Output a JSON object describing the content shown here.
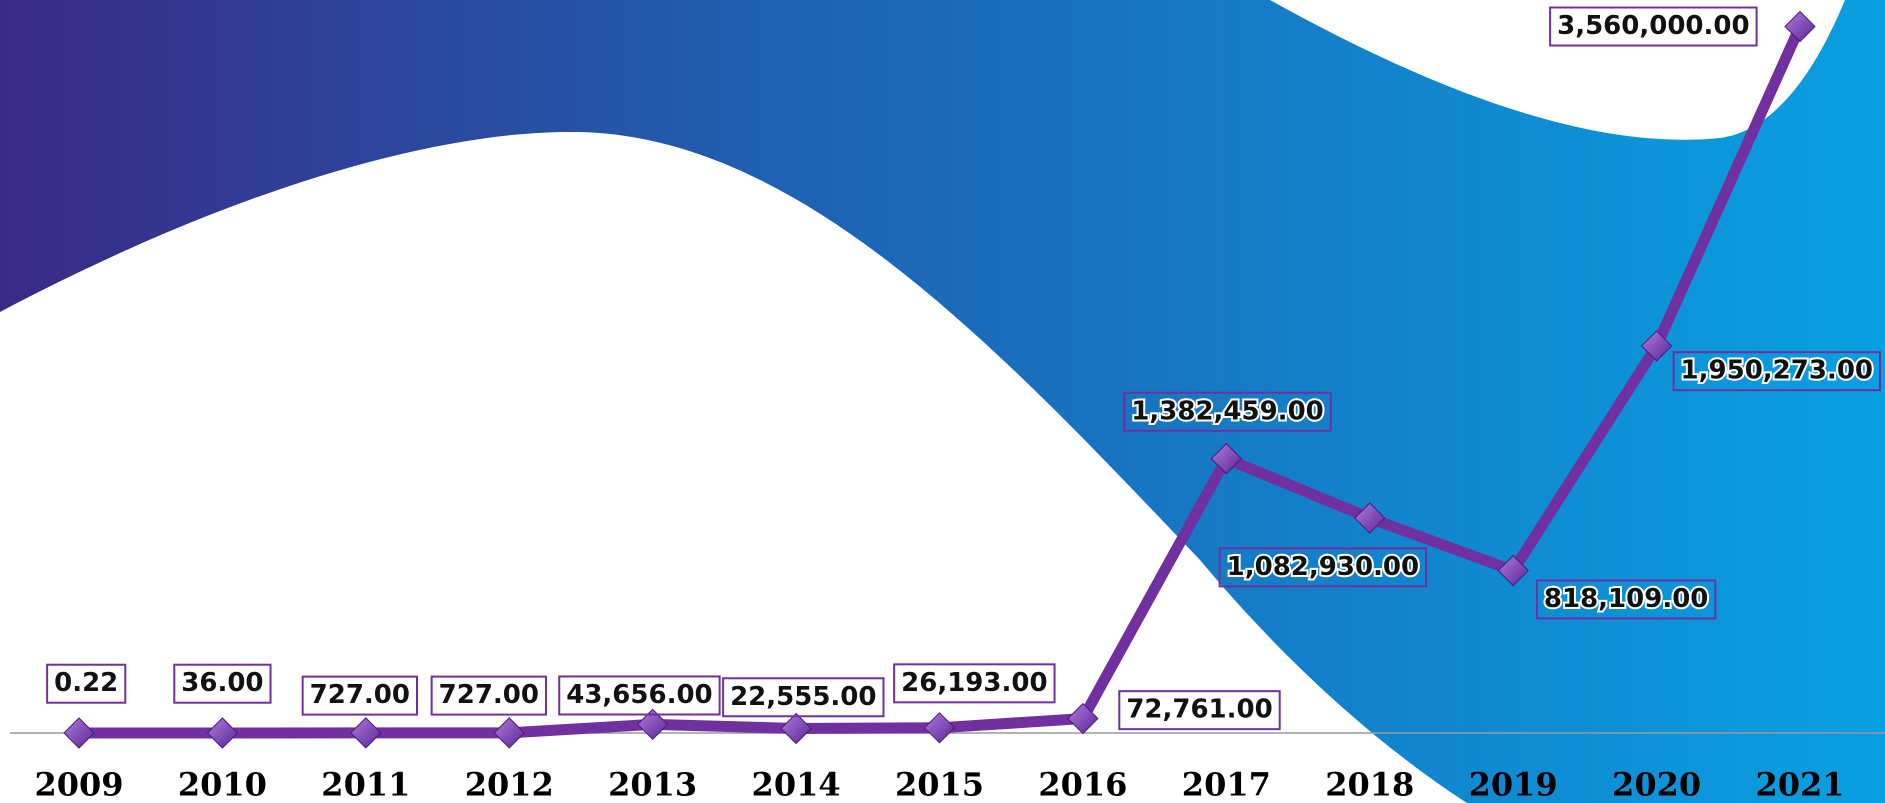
{
  "chart_data": {
    "type": "line",
    "categories": [
      "2009",
      "2010",
      "2011",
      "2012",
      "2013",
      "2014",
      "2015",
      "2016",
      "2017",
      "2018",
      "2019",
      "2020",
      "2021"
    ],
    "series": [
      {
        "color": "#7030a0",
        "values": [
          0.22,
          36,
          727,
          727,
          43656,
          22555,
          26193,
          72761,
          1382459,
          1082930,
          818109,
          1950273,
          3560000
        ],
        "value_labels": [
          "0.22",
          "36.00",
          "727.00",
          "727.00",
          "43,656.00",
          "22,555.00",
          "26,193.00",
          "72,761.00",
          "1,382,459.00",
          "1,082,930.00",
          "818,109.00",
          "1,950,273.00",
          "3,560,000.00"
        ]
      }
    ],
    "ylim": [
      0,
      3560000
    ]
  }
}
